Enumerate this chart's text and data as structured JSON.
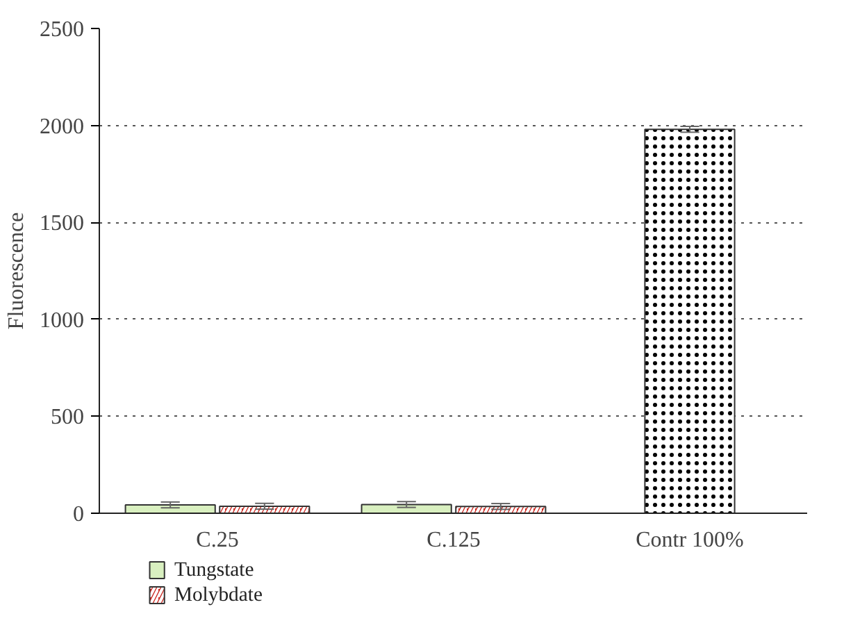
{
  "chart_data": {
    "type": "bar",
    "ylabel": "Fluorescence",
    "categories": [
      "C.25",
      "C.125",
      "Contr 100%"
    ],
    "series": [
      {
        "name": "Tungstate",
        "color": "#d9f0c0",
        "values": [
          43,
          45,
          null
        ],
        "errors": [
          15,
          15,
          null
        ]
      },
      {
        "name": "Molybdate",
        "color": "#cc2a22",
        "values": [
          36,
          35,
          null
        ],
        "errors": [
          15,
          15,
          null
        ]
      },
      {
        "color": "#ffffff",
        "values": [
          null,
          null,
          1980
        ],
        "errors": [
          null,
          null,
          15
        ]
      }
    ],
    "ylim": [
      0,
      2500
    ],
    "yticks": [
      0,
      500,
      1000,
      1500,
      2000,
      2500
    ],
    "grid": "y",
    "legend": "bottom left"
  }
}
